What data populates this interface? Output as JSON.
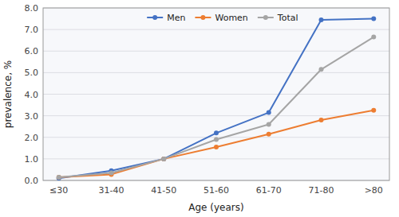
{
  "chart_data": {
    "type": "line",
    "xlabel": "Age (years)",
    "ylabel": "prevalence, %",
    "categories": [
      "≤30",
      "31-40",
      "41-50",
      "51-60",
      "61-70",
      "71-80",
      ">80"
    ],
    "series": [
      {
        "name": "Men",
        "color": "#4472C4",
        "values": [
          0.1,
          0.45,
          1.0,
          2.2,
          3.15,
          7.45,
          7.5
        ]
      },
      {
        "name": "Women",
        "color": "#ED7D31",
        "values": [
          0.15,
          0.28,
          1.0,
          1.55,
          2.15,
          2.8,
          3.25
        ]
      },
      {
        "name": "Total",
        "color": "#A5A5A5",
        "values": [
          0.15,
          0.35,
          1.0,
          1.9,
          2.6,
          5.15,
          6.65
        ]
      }
    ],
    "ylim": [
      0.0,
      8.0
    ],
    "yticks": [
      {
        "value": 0.0,
        "label": "0.0"
      },
      {
        "value": 1.0,
        "label": "1.0"
      },
      {
        "value": 2.0,
        "label": "2.0"
      },
      {
        "value": 3.0,
        "label": "3.0"
      },
      {
        "value": 4.0,
        "label": "4.0"
      },
      {
        "value": 5.0,
        "label": "5.0"
      },
      {
        "value": 6.0,
        "label": "6.0"
      },
      {
        "value": 7.0,
        "label": "7.0"
      },
      {
        "value": 8.0,
        "label": "8.0"
      }
    ],
    "grid": true,
    "legend": "top",
    "marker": "circle"
  }
}
